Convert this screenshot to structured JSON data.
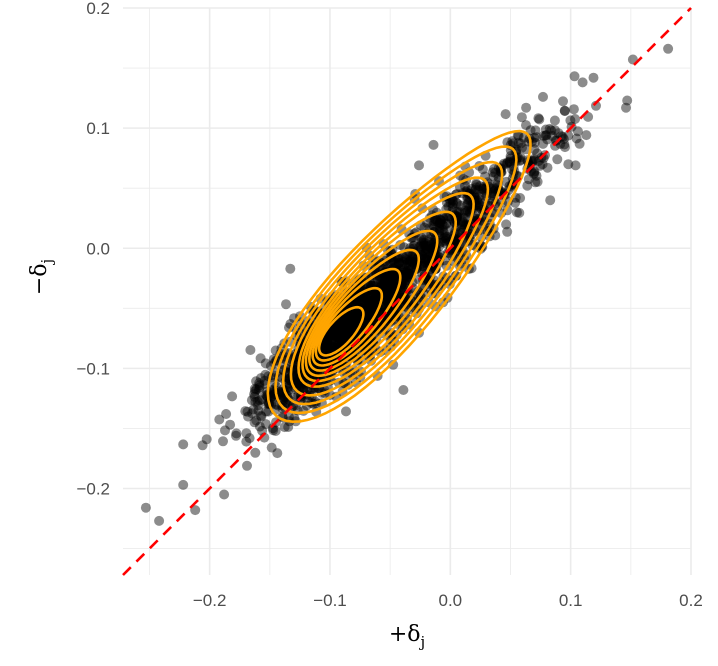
{
  "chart_data": {
    "type": "scatter",
    "title": "",
    "xlabel": "+δj",
    "ylabel": "−δj",
    "xlim": [
      -0.272,
      0.2
    ],
    "ylim": [
      -0.272,
      0.2
    ],
    "x_ticks": [
      -0.2,
      -0.1,
      0.0,
      0.1,
      0.2
    ],
    "x_tick_labels": [
      "−0.2",
      "−0.1",
      "0.0",
      "0.1",
      "0.2"
    ],
    "y_ticks": [
      -0.2,
      -0.1,
      0.0,
      0.1,
      0.2
    ],
    "y_tick_labels": [
      "−0.2",
      "−0.1",
      "0.0",
      "0.1",
      "0.2"
    ],
    "grid": true,
    "legend": "none",
    "layers": [
      {
        "name": "points",
        "kind": "scatter",
        "color": "#000000",
        "alpha": 0.45,
        "approx_n": 2000,
        "center": [
          -0.07,
          -0.055
        ],
        "major_axis_slope": 1.0,
        "spread_along": 0.075,
        "spread_across": 0.016
      },
      {
        "name": "density-contours",
        "kind": "2d-density",
        "color": "#FFA500",
        "levels": 11,
        "mode_primary": [
          -0.097,
          -0.075
        ],
        "mode_secondary": [
          -0.05,
          -0.035
        ]
      },
      {
        "name": "identity-line",
        "kind": "abline",
        "slope": 1,
        "intercept": 0,
        "color": "#FF0000",
        "linetype": "dashed"
      }
    ],
    "notable_points": [
      {
        "x": -0.253,
        "y": -0.216
      },
      {
        "x": -0.242,
        "y": -0.227
      },
      {
        "x": -0.222,
        "y": -0.197
      },
      {
        "x": -0.212,
        "y": -0.218
      },
      {
        "x": -0.188,
        "y": -0.205
      },
      {
        "x": 0.181,
        "y": 0.166
      },
      {
        "x": 0.147,
        "y": 0.123
      },
      {
        "x": 0.146,
        "y": 0.117
      },
      {
        "x": 0.119,
        "y": 0.142
      },
      {
        "x": 0.083,
        "y": 0.04
      },
      {
        "x": 0.098,
        "y": 0.07
      },
      {
        "x": -0.014,
        "y": 0.086
      },
      {
        "x": -0.133,
        "y": -0.017
      },
      {
        "x": -0.039,
        "y": -0.118
      },
      {
        "x": -0.026,
        "y": 0.069
      },
      {
        "x": -0.006,
        "y": -0.045
      },
      {
        "x": 0.077,
        "y": 0.126
      },
      {
        "x": 0.063,
        "y": 0.117
      }
    ]
  },
  "axes": {
    "x_title": "+δ",
    "x_title_sub": "j",
    "y_title": "−δ",
    "y_title_sub": "j"
  }
}
